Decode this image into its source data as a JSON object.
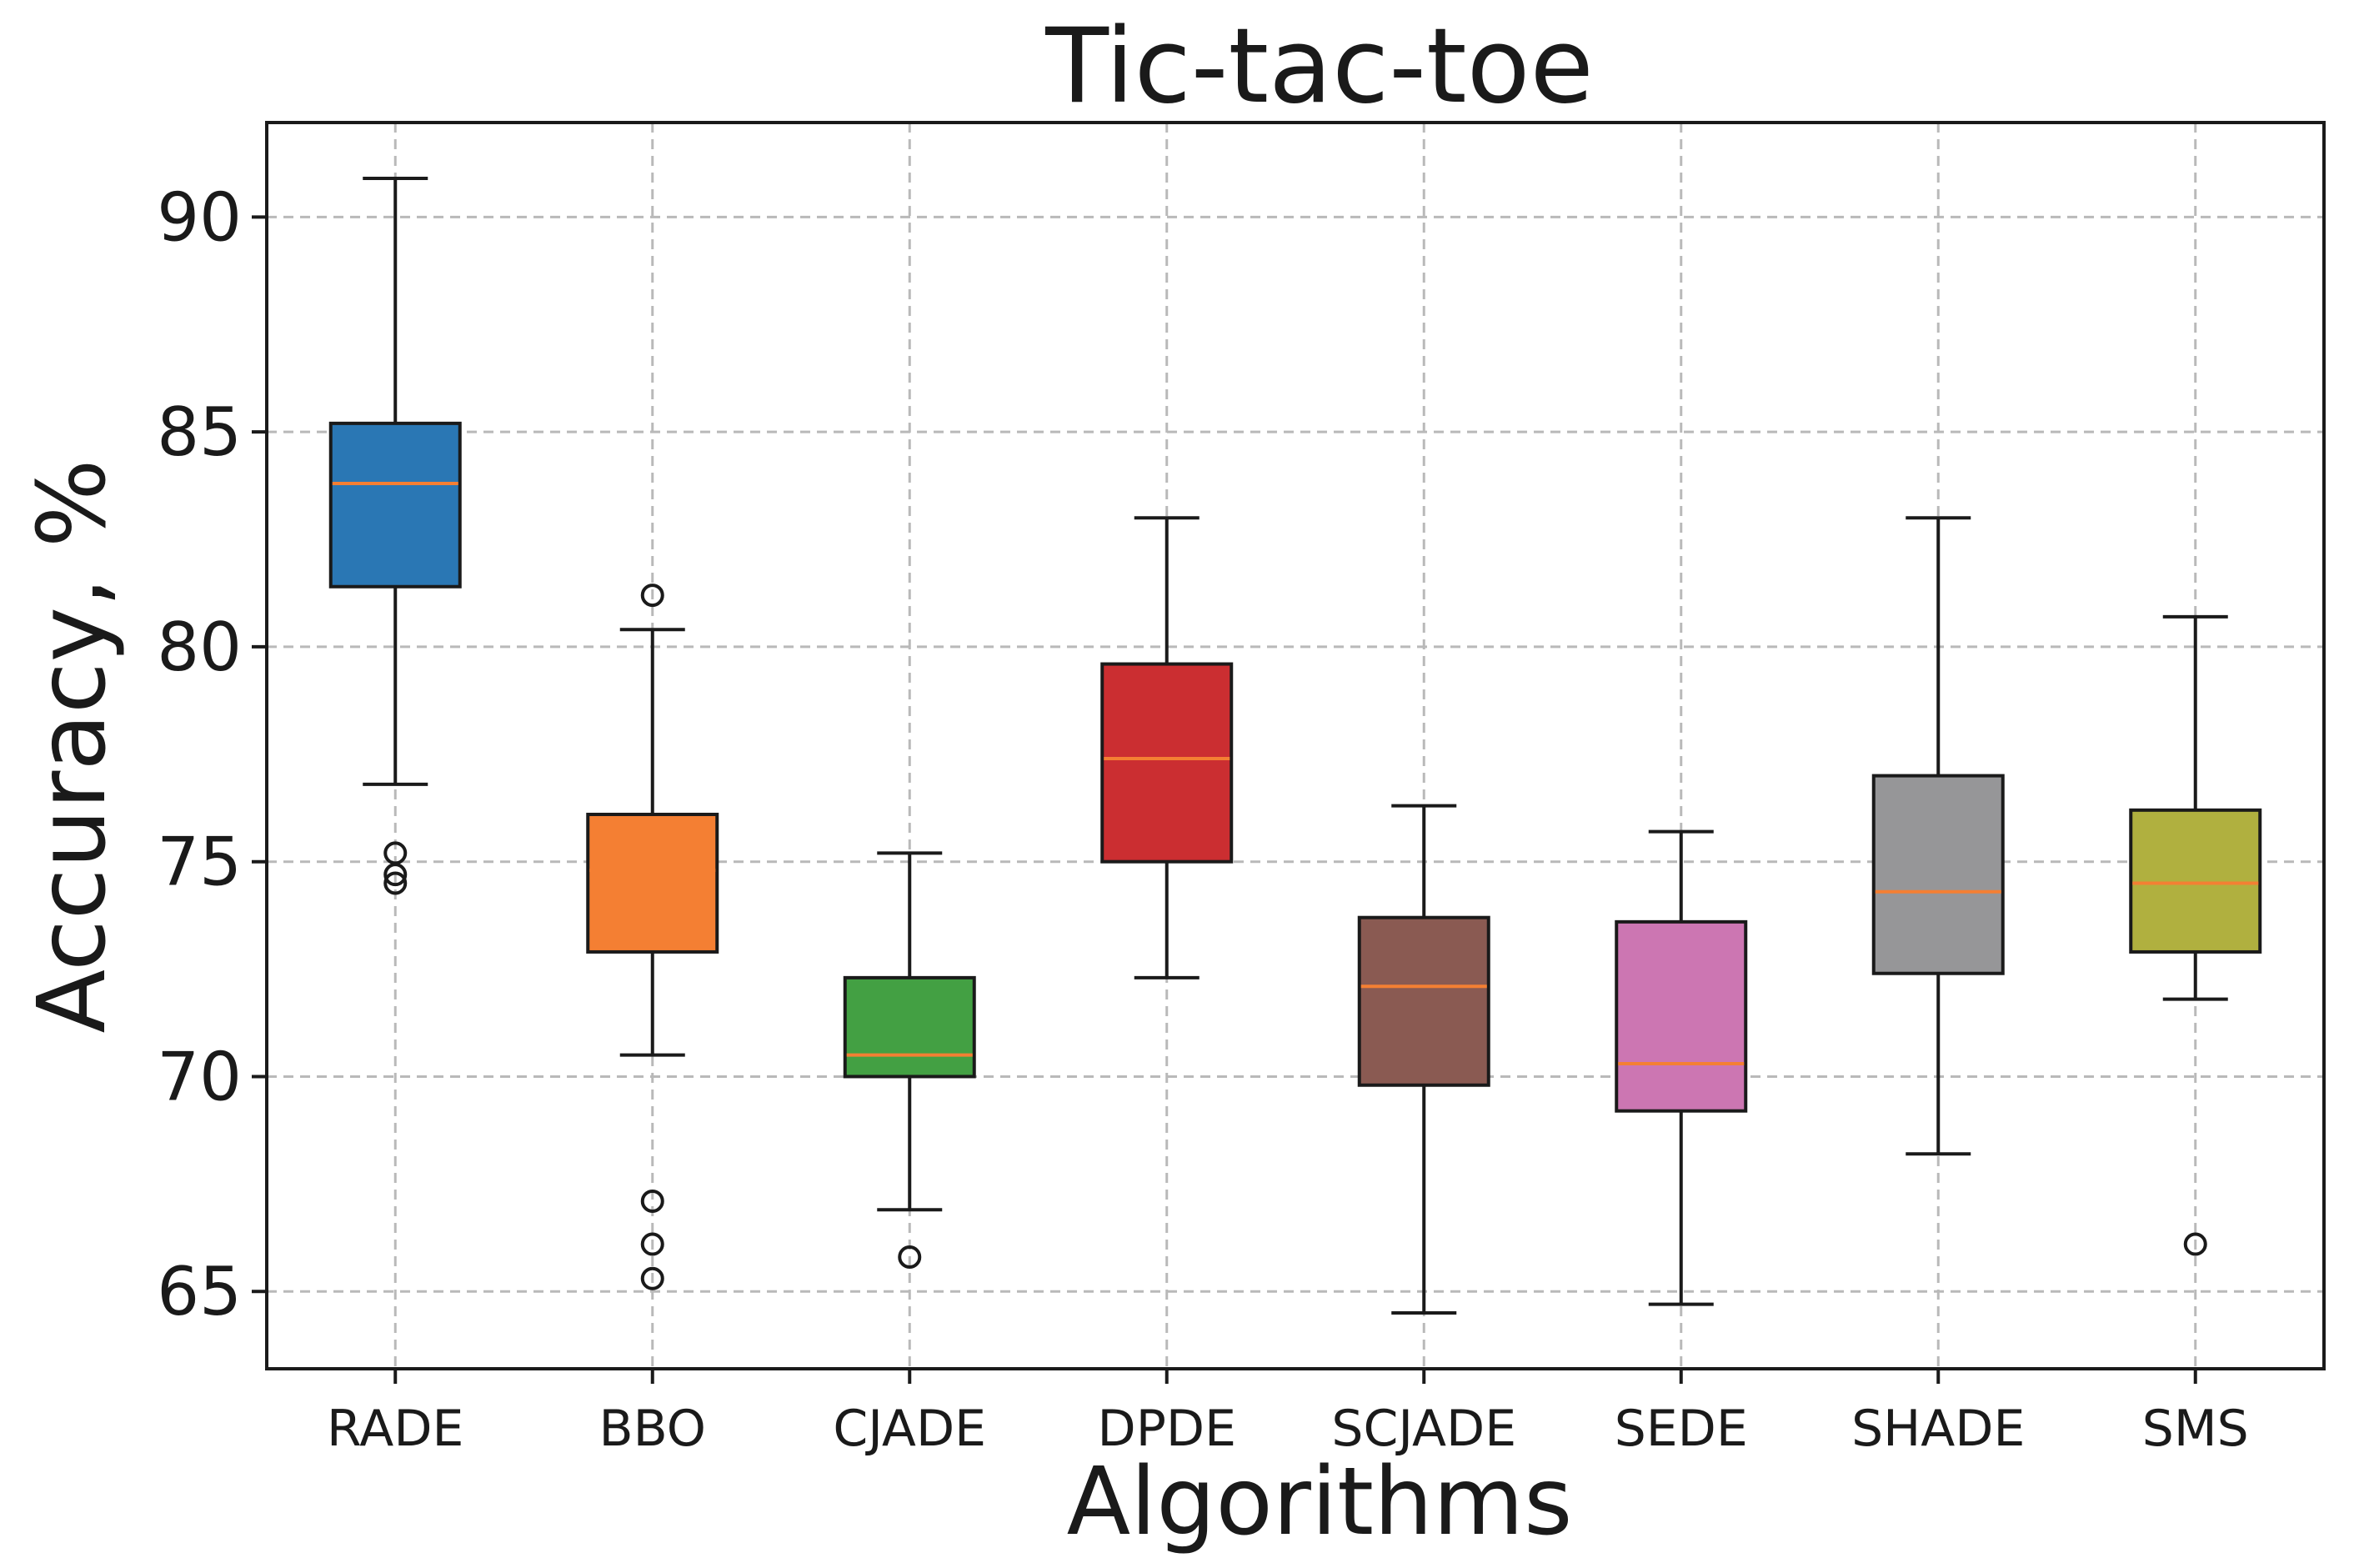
{
  "chart_data": {
    "type": "box",
    "title": "Tic-tac-toe",
    "xlabel": "Algorithms",
    "ylabel": "Accuracy, %",
    "ylim": [
      63.2,
      92.2
    ],
    "yticks": [
      65,
      70,
      75,
      80,
      85,
      90
    ],
    "grid": true,
    "grid_style": "dashed",
    "categories": [
      "RADE",
      "BBO",
      "CJADE",
      "DPDE",
      "SCJADE",
      "SEDE",
      "SHADE",
      "SMS"
    ],
    "boxes": [
      {
        "name": "RADE",
        "color": "#2a77b4",
        "whisker_low": 76.8,
        "q1": 81.4,
        "median": 83.8,
        "q3": 85.2,
        "whisker_high": 90.9,
        "outliers": [
          75.2,
          74.7,
          74.5
        ]
      },
      {
        "name": "BBO",
        "color": "#f47f33",
        "whisker_low": 70.5,
        "q1": 72.9,
        "median": 74.8,
        "q3": 76.1,
        "whisker_high": 80.4,
        "outliers": [
          81.2,
          67.1,
          66.1,
          65.3
        ]
      },
      {
        "name": "CJADE",
        "color": "#43a043",
        "whisker_low": 66.9,
        "q1": 70.0,
        "median": 70.5,
        "q3": 72.3,
        "whisker_high": 75.2,
        "outliers": [
          65.8
        ]
      },
      {
        "name": "DPDE",
        "color": "#cb2e31",
        "whisker_low": 72.3,
        "q1": 75.0,
        "median": 77.4,
        "q3": 79.6,
        "whisker_high": 83.0,
        "outliers": []
      },
      {
        "name": "SCJADE",
        "color": "#8a5a52",
        "whisker_low": 64.5,
        "q1": 69.8,
        "median": 72.1,
        "q3": 73.7,
        "whisker_high": 76.3,
        "outliers": []
      },
      {
        "name": "SEDE",
        "color": "#cc76b2",
        "whisker_low": 64.7,
        "q1": 69.2,
        "median": 70.3,
        "q3": 73.6,
        "whisker_high": 75.7,
        "outliers": []
      },
      {
        "name": "SHADE",
        "color": "#969698",
        "whisker_low": 68.2,
        "q1": 72.4,
        "median": 74.3,
        "q3": 77.0,
        "whisker_high": 83.0,
        "outliers": []
      },
      {
        "name": "SMS",
        "color": "#b0b03f",
        "whisker_low": 71.8,
        "q1": 72.9,
        "median": 74.5,
        "q3": 76.2,
        "whisker_high": 80.7,
        "outliers": [
          66.1
        ]
      }
    ],
    "median_color": "#f47f33",
    "line_color": "#1a1a1a",
    "grid_color": "#b9b9b9"
  }
}
